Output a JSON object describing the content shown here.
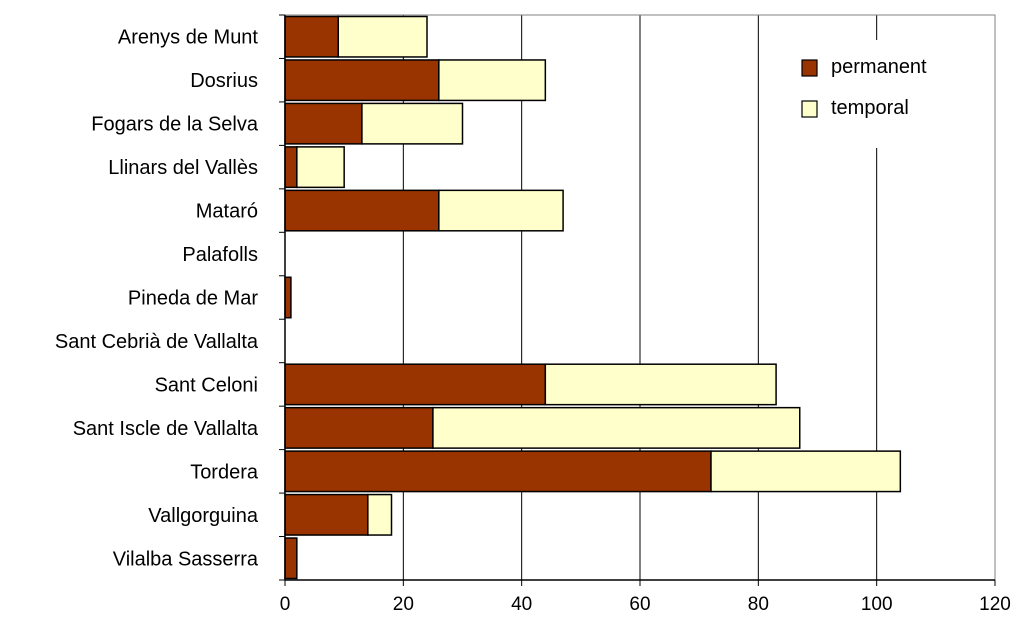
{
  "chart_data": {
    "type": "bar",
    "orientation": "horizontal",
    "stacked": true,
    "title": "",
    "xlabel": "",
    "ylabel": "",
    "categories": [
      "Arenys de Munt",
      "Dosrius",
      "Fogars de la Selva",
      "Llinars del Vallès",
      "Mataró",
      "Palafolls",
      "Pineda de Mar",
      "Sant Cebrià de Vallalta",
      "Sant Celoni",
      "Sant Iscle de Vallalta",
      "Tordera",
      "Vallgorguina",
      "Vilalba Sasserra"
    ],
    "series": [
      {
        "name": "permanent",
        "color": "#993300",
        "values": [
          9,
          26,
          13,
          2,
          26,
          0,
          1,
          0,
          44,
          25,
          72,
          14,
          2
        ]
      },
      {
        "name": "temporal",
        "color": "#FFFFCC",
        "values": [
          15,
          18,
          17,
          8,
          21,
          0,
          0,
          0,
          39,
          62,
          32,
          4,
          0
        ]
      }
    ],
    "xlim": [
      0,
      120
    ],
    "x_ticks": [
      "0",
      "20",
      "40",
      "60",
      "80",
      "100",
      "120"
    ],
    "grid": "vertical",
    "legend_position": "top-right"
  }
}
